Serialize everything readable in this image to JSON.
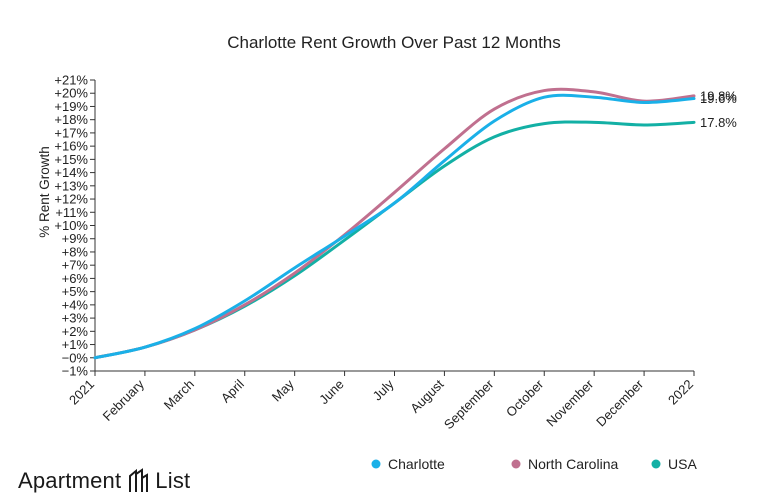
{
  "chart_data": {
    "type": "line",
    "title": "Charlotte Rent Growth Over Past 12 Months",
    "ylabel": "% Rent Growth",
    "xlabel": "",
    "categories": [
      "2021",
      "February",
      "March",
      "April",
      "May",
      "June",
      "July",
      "August",
      "September",
      "October",
      "November",
      "December",
      "2022"
    ],
    "y_ticks": [
      "−1%",
      "−0%",
      "+1%",
      "+2%",
      "+3%",
      "+4%",
      "+5%",
      "+6%",
      "+7%",
      "+8%",
      "+9%",
      "+10%",
      "+11%",
      "+12%",
      "+13%",
      "+14%",
      "+15%",
      "+16%",
      "+17%",
      "+18%",
      "+19%",
      "+20%",
      "+21%"
    ],
    "ylim": [
      -1,
      21
    ],
    "series": [
      {
        "name": "Charlotte",
        "color": "#1ab0e8",
        "values": [
          0,
          0.8,
          2.2,
          4.3,
          6.8,
          9.2,
          11.7,
          14.9,
          17.9,
          19.7,
          19.7,
          19.3,
          19.6
        ],
        "end_label": "19.6%"
      },
      {
        "name": "North Carolina",
        "color": "#c0708f",
        "values": [
          0,
          0.8,
          2.1,
          4.0,
          6.4,
          9.3,
          12.5,
          15.8,
          18.8,
          20.2,
          20.1,
          19.4,
          19.8
        ],
        "end_label": "19.8%"
      },
      {
        "name": "USA",
        "color": "#13b0a5",
        "values": [
          0,
          0.8,
          2.1,
          3.9,
          6.2,
          8.9,
          11.7,
          14.5,
          16.7,
          17.7,
          17.8,
          17.6,
          17.8
        ],
        "end_label": "17.8%"
      }
    ],
    "grid": false,
    "legend": "bottom-right"
  },
  "brand": {
    "word1": "Apartment",
    "word2": "List",
    "logo_icon": "apartment-list-logo-icon"
  }
}
